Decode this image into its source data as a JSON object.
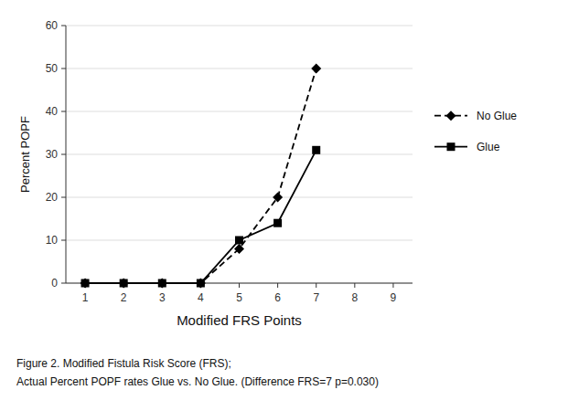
{
  "chart_data": {
    "type": "line",
    "x": [
      1,
      2,
      3,
      4,
      5,
      6,
      7
    ],
    "series": [
      {
        "name": "No Glue",
        "color": "black",
        "marker": "diamond",
        "line_style": "dashed",
        "values": [
          0,
          0,
          0,
          0,
          8,
          20,
          50
        ]
      },
      {
        "name": "Glue",
        "color": "black",
        "marker": "square",
        "line_style": "solid",
        "values": [
          0,
          0,
          0,
          0,
          10,
          14,
          31
        ]
      }
    ],
    "xlabel": "Modified FRS Points",
    "ylabel": "Percent POPF",
    "xlim": [
      0.5,
      9.5
    ],
    "ylim": [
      0,
      60
    ],
    "xticks": [
      1,
      2,
      3,
      4,
      5,
      6,
      7,
      8,
      9
    ],
    "yticks": [
      0,
      10,
      20,
      30,
      40,
      50,
      60
    ],
    "grid": "y",
    "legend": "right",
    "caption": [
      "Figure 2. Modified Fistula Risk Score (FRS);",
      "Actual Percent POPF rates Glue vs. No Glue. (Difference FRS=7 p=0.030)"
    ]
  }
}
